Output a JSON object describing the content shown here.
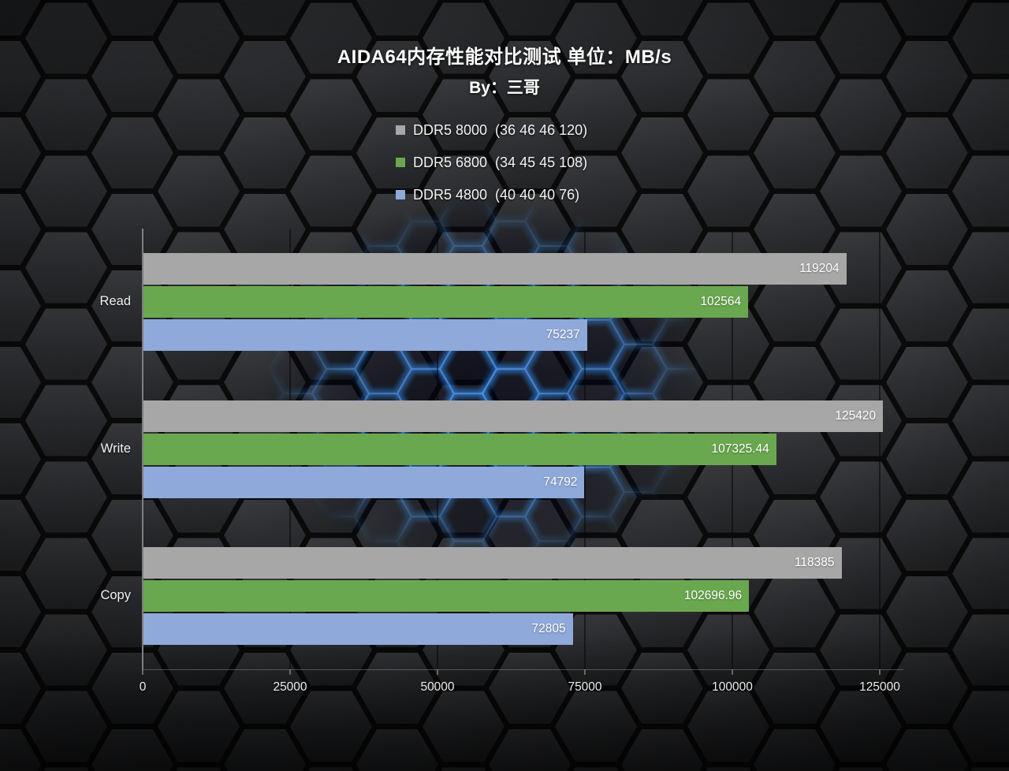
{
  "title": "AIDA64内存性能对比测试 单位：MB/s",
  "subtitle": "By：三哥",
  "chart_data": {
    "type": "bar",
    "orientation": "horizontal",
    "title": "AIDA64内存性能对比测试 单位：MB/s",
    "subtitle": "By：三哥",
    "unit": "MB/s",
    "categories": [
      "Read",
      "Write",
      "Copy"
    ],
    "series": [
      {
        "name": "DDR5 8000  (36 46 46 120)",
        "color": "#a7a7a7",
        "values": [
          119204,
          125420,
          118385
        ]
      },
      {
        "name": "DDR5 6800  (34 45 45 108)",
        "color": "#6aa84f",
        "values": [
          102564,
          107325.44,
          102696.96
        ]
      },
      {
        "name": "DDR5 4800  (40 40 40 76)",
        "color": "#8fa9da",
        "values": [
          75237,
          74792,
          72805
        ]
      }
    ],
    "xlim": [
      0,
      125000
    ],
    "x_ticks": [
      0,
      25000,
      50000,
      75000,
      100000,
      125000
    ],
    "x_tick_labels": [
      "0",
      "25000",
      "50000",
      "75000",
      "100000",
      "125000"
    ],
    "grid": "vertical",
    "legend_position": "top-center",
    "value_labels": "inside-end"
  }
}
